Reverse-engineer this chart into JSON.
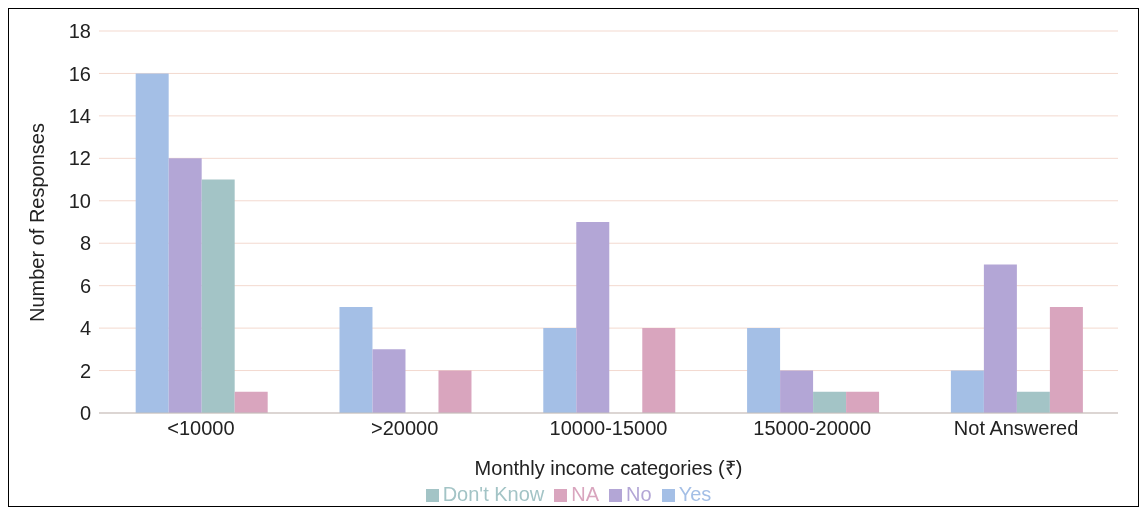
{
  "chart_data": {
    "type": "bar",
    "xlabel": "Monthly income categories (₹)",
    "ylabel": "Number of Responses",
    "categories": [
      "<10000",
      ">20000",
      "10000-15000",
      "15000-20000",
      "Not Answered"
    ],
    "series": [
      {
        "name": "Yes",
        "color": "#a4bfe6",
        "values": [
          16,
          5,
          4,
          4,
          2
        ]
      },
      {
        "name": "No",
        "color": "#b3a6d6",
        "values": [
          12,
          3,
          9,
          2,
          7
        ]
      },
      {
        "name": "Don't Know",
        "color": "#a3c4c6",
        "values": [
          11,
          0,
          0,
          1,
          1
        ]
      },
      {
        "name": "NA",
        "color": "#d9a5be",
        "values": [
          1,
          2,
          4,
          1,
          5
        ]
      }
    ],
    "ylim": [
      0,
      18
    ],
    "yticks": [
      0,
      2,
      4,
      6,
      8,
      10,
      12,
      14,
      16,
      18
    ],
    "grid": "y",
    "legend": "bottom"
  }
}
